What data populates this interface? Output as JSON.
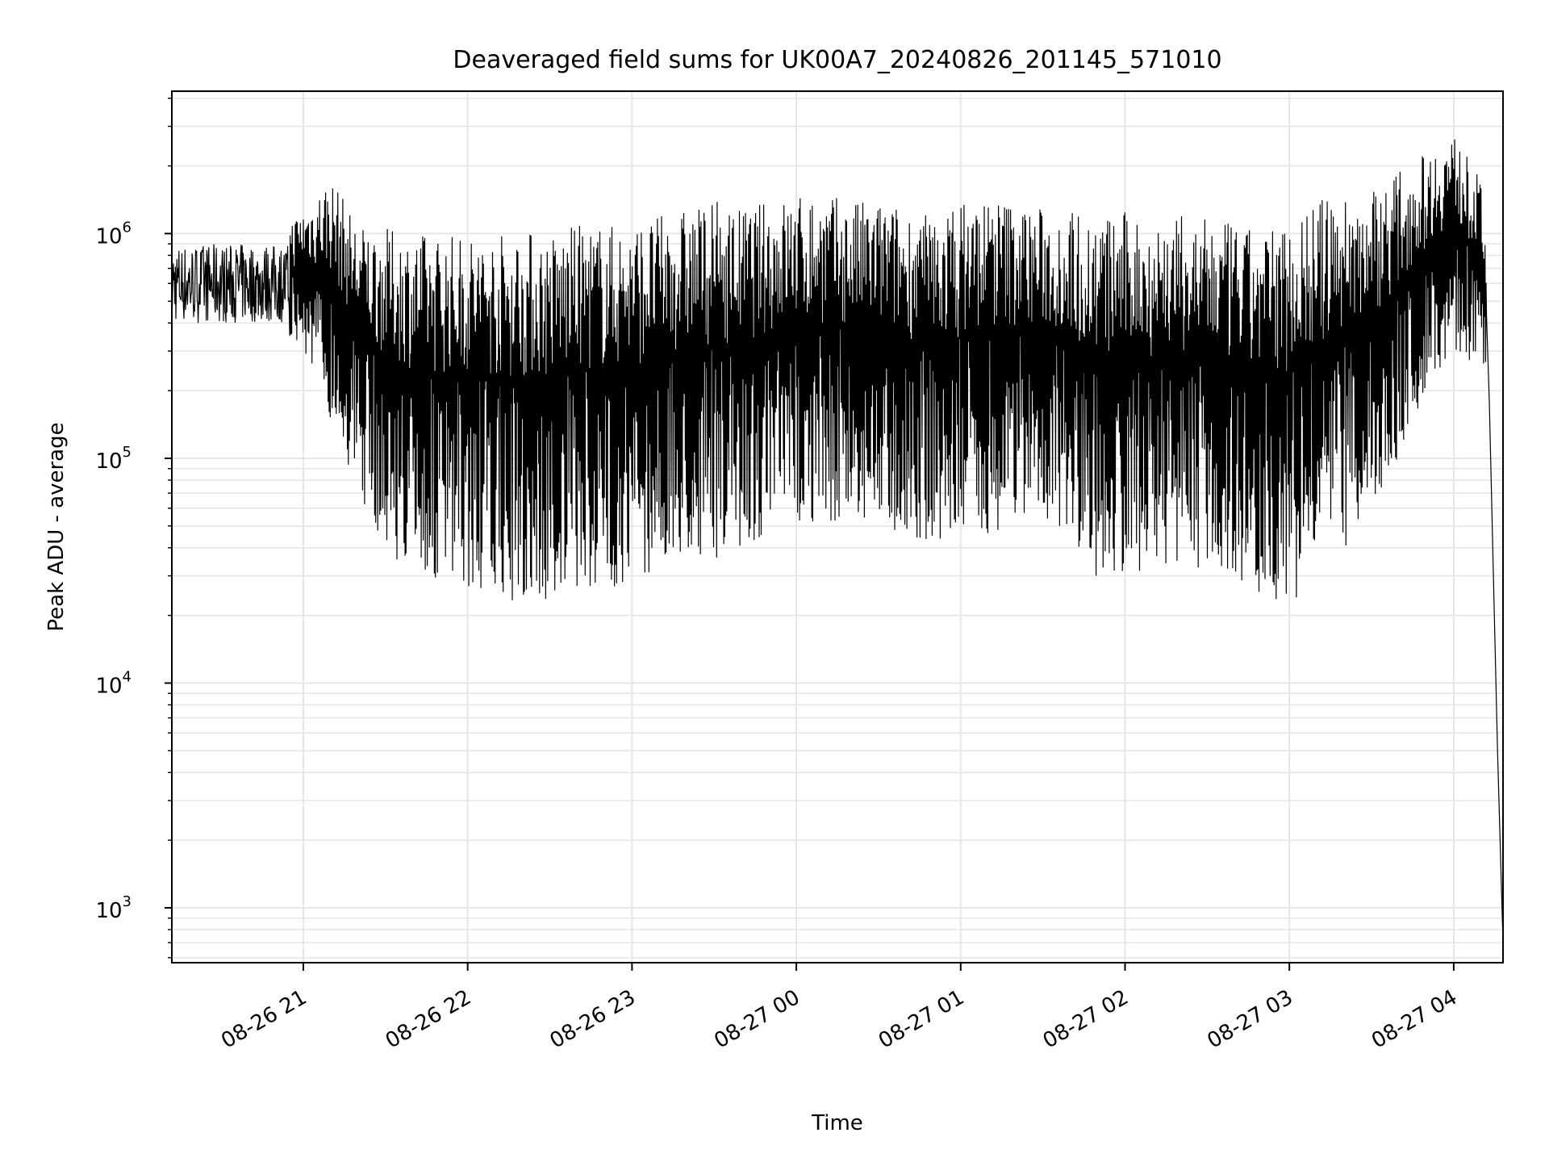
{
  "chart_data": {
    "type": "line",
    "title": "Deaveraged field sums for UK00A7_20240826_201145_571010",
    "xlabel": "Time",
    "ylabel": "Peak ADU - average",
    "yscale": "log",
    "ylim": [
      570,
      4300000
    ],
    "xlim": [
      "2024-08-26 20:12",
      "2024-08-27 04:18"
    ],
    "grid": true,
    "line_color": "#000000",
    "grid_color": "#e6e6e6",
    "x_ticks": [
      {
        "t": "2024-08-26 21:00",
        "label": "08-26 21"
      },
      {
        "t": "2024-08-26 22:00",
        "label": "08-26 22"
      },
      {
        "t": "2024-08-26 23:00",
        "label": "08-26 23"
      },
      {
        "t": "2024-08-27 00:00",
        "label": "08-27 00"
      },
      {
        "t": "2024-08-27 01:00",
        "label": "08-27 01"
      },
      {
        "t": "2024-08-27 02:00",
        "label": "08-27 02"
      },
      {
        "t": "2024-08-27 03:00",
        "label": "08-27 03"
      },
      {
        "t": "2024-08-27 04:00",
        "label": "08-27 04"
      }
    ],
    "y_ticks": [
      {
        "value": 1000,
        "base": "10",
        "exp": "3"
      },
      {
        "value": 10000,
        "base": "10",
        "exp": "4"
      },
      {
        "value": 100000,
        "base": "10",
        "exp": "5"
      },
      {
        "value": 1000000,
        "base": "10",
        "exp": "6"
      }
    ],
    "series": [
      {
        "x": [
          "2024-08-26 20:12",
          "2024-08-26 20:30",
          "2024-08-26 20:40",
          "2024-08-26 20:50",
          "2024-08-26 21:00",
          "2024-08-26 21:10",
          "2024-08-26 21:20",
          "2024-08-26 21:30",
          "2024-08-26 21:40",
          "2024-08-26 21:50",
          "2024-08-26 22:00",
          "2024-08-26 22:10",
          "2024-08-26 22:20",
          "2024-08-26 22:30",
          "2024-08-26 22:40",
          "2024-08-26 22:50",
          "2024-08-26 23:00",
          "2024-08-26 23:10",
          "2024-08-26 23:20",
          "2024-08-26 23:30",
          "2024-08-26 23:40",
          "2024-08-26 23:50",
          "2024-08-27 00:00",
          "2024-08-27 00:10",
          "2024-08-27 00:20",
          "2024-08-27 00:30",
          "2024-08-27 00:40",
          "2024-08-27 00:50",
          "2024-08-27 01:00",
          "2024-08-27 01:10",
          "2024-08-27 01:20",
          "2024-08-27 01:30",
          "2024-08-27 01:40",
          "2024-08-27 01:50",
          "2024-08-27 02:00",
          "2024-08-27 02:10",
          "2024-08-27 02:20",
          "2024-08-27 02:30",
          "2024-08-27 02:40",
          "2024-08-27 02:50",
          "2024-08-27 03:00",
          "2024-08-27 03:10",
          "2024-08-27 03:20",
          "2024-08-27 03:30",
          "2024-08-27 03:40",
          "2024-08-27 03:50",
          "2024-08-27 04:00",
          "2024-08-27 04:10",
          "2024-08-27 04:13",
          "2024-08-27 04:16",
          "2024-08-27 04:18"
        ],
        "high": [
          950000,
          1000000,
          1000000,
          1000000,
          1300000,
          1800000,
          1100000,
          1050000,
          1000000,
          1000000,
          1000000,
          1000000,
          1050000,
          1000000,
          1100000,
          1100000,
          1100000,
          1200000,
          1300000,
          1400000,
          1300000,
          1400000,
          1500000,
          1500000,
          1400000,
          1400000,
          1300000,
          1200000,
          1400000,
          1500000,
          1400000,
          1300000,
          1300000,
          1200000,
          1250000,
          1200000,
          1200000,
          1150000,
          1100000,
          1000000,
          1200000,
          1400000,
          1500000,
          1600000,
          1900000,
          2300000,
          2800000,
          1700000,
          700000,
          100000,
          2000
        ],
        "low": [
          500000,
          480000,
          420000,
          350000,
          300000,
          150000,
          70000,
          40000,
          30000,
          27000,
          26000,
          24000,
          22000,
          22000,
          25000,
          26000,
          28000,
          32000,
          34000,
          36000,
          40000,
          45000,
          50000,
          52000,
          50000,
          48000,
          46000,
          42000,
          42000,
          45000,
          52000,
          55000,
          45000,
          28000,
          30000,
          32000,
          34000,
          32000,
          28000,
          25000,
          22000,
          30000,
          40000,
          60000,
          100000,
          200000,
          300000,
          250000,
          180000,
          5000,
          700
        ]
      }
    ]
  }
}
